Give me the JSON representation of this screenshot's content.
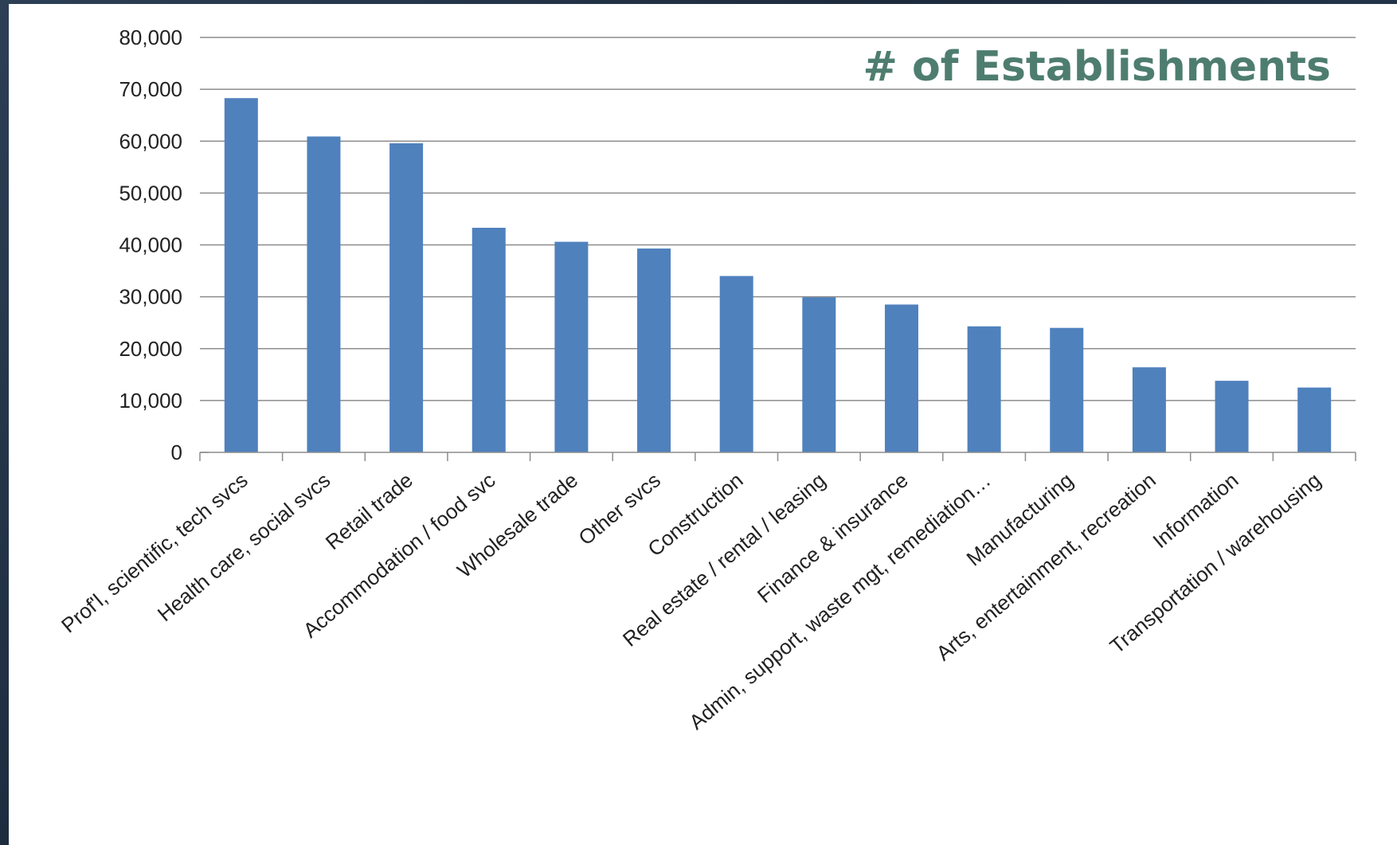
{
  "chart_data": {
    "type": "bar",
    "title": "# of Establishments",
    "xlabel": "",
    "ylabel": "",
    "ylim": [
      0,
      80000
    ],
    "yticks": [
      0,
      10000,
      20000,
      30000,
      40000,
      50000,
      60000,
      70000,
      80000
    ],
    "ytick_labels": [
      "0",
      "10,000",
      "20,000",
      "30,000",
      "40,000",
      "50,000",
      "60,000",
      "70,000",
      "80,000"
    ],
    "grid": true,
    "legend": "none",
    "categories": [
      "Prof'l, scientific, tech svcs",
      "Health care, social svcs",
      "Retail trade",
      "Accommodation / food svc",
      "Wholesale trade",
      "Other svcs",
      "Construction",
      "Real estate / rental / leasing",
      "Finance & insurance",
      "Admin, support, waste mgt, remediation…",
      "Manufacturing",
      "Arts, entertainment, recreation",
      "Information",
      "Transportation / warehousing"
    ],
    "values": [
      68300,
      60900,
      59600,
      43300,
      40600,
      39300,
      34000,
      29900,
      28500,
      24300,
      24000,
      16400,
      13800,
      12500
    ],
    "colors": {
      "bar": "#4f81bd",
      "title": "#4e7d6f",
      "grid": "#8c8c8c",
      "axis": "#8c8c8c"
    }
  }
}
